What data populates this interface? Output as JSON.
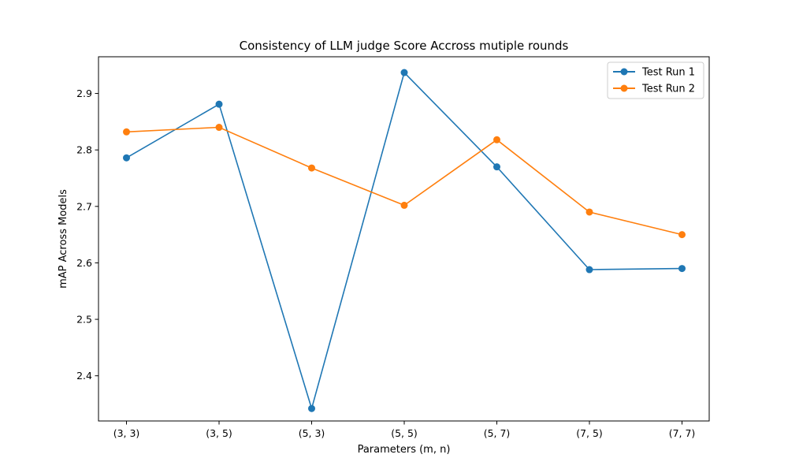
{
  "chart_data": {
    "type": "line",
    "title": "Consistency of LLM judge Score Accross mutiple rounds",
    "xlabel": "Parameters (m, n)",
    "ylabel": "mAP Across Models",
    "categories": [
      "(3, 3)",
      "(3, 5)",
      "(5, 3)",
      "(5, 5)",
      "(5, 7)",
      "(7, 5)",
      "(7, 7)"
    ],
    "ylim": [
      2.32,
      2.965
    ],
    "yticks": [
      2.4,
      2.5,
      2.6,
      2.7,
      2.8,
      2.9
    ],
    "ytick_labels": [
      "2.4",
      "2.5",
      "2.6",
      "2.7",
      "2.8",
      "2.9"
    ],
    "grid": false,
    "legend_position": "top-right",
    "series": [
      {
        "name": "Test Run 1",
        "color": "#1f77b4",
        "marker": "circle",
        "values": [
          2.786,
          2.881,
          2.342,
          2.937,
          2.77,
          2.588,
          2.59
        ]
      },
      {
        "name": "Test Run 2",
        "color": "#ff7f0e",
        "marker": "circle",
        "values": [
          2.832,
          2.84,
          2.768,
          2.702,
          2.818,
          2.69,
          2.65
        ]
      }
    ]
  }
}
